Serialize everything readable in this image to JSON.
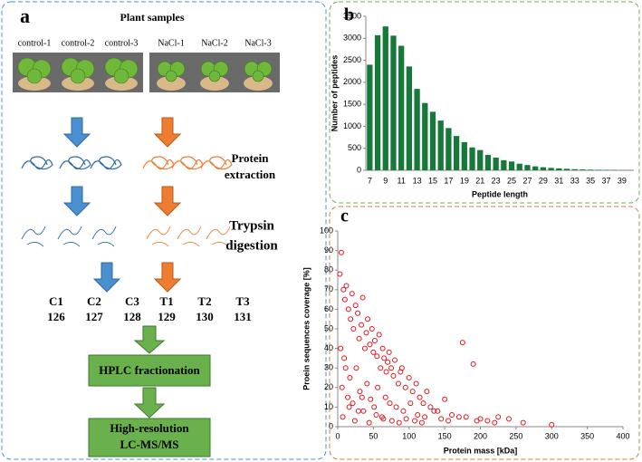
{
  "panel_a": {
    "label": "a",
    "title": "Plant samples",
    "samples": [
      "control-1",
      "control-2",
      "control-3",
      "NaCl-1",
      "NaCl-2",
      "NaCl-3"
    ],
    "extraction": [
      "Protein",
      "extraction"
    ],
    "digestion": [
      "Trypsin",
      "digestion"
    ],
    "tags": [
      {
        "name": "C1",
        "number": "126"
      },
      {
        "name": "C2",
        "number": "127"
      },
      {
        "name": "C3",
        "number": "128"
      },
      {
        "name": "T1",
        "number": "129"
      },
      {
        "name": "T2",
        "number": "130"
      },
      {
        "name": "T3",
        "number": "131"
      }
    ],
    "fractionation": "HPLC fractionation",
    "ms": [
      "High-resolution",
      "LC-MS/MS"
    ]
  },
  "chart_data": [
    {
      "type": "bar",
      "label": "b",
      "xlabel": "Peptide length",
      "ylabel": "Number of peptides",
      "color": "#16793a",
      "grid": false,
      "categories": [
        "7",
        null,
        "9",
        null,
        "11",
        null,
        "13",
        null,
        "15",
        null,
        "17",
        null,
        "19",
        null,
        "21",
        null,
        "23",
        null,
        "25",
        null,
        "27",
        null,
        "29",
        null,
        "31",
        null,
        "33",
        null,
        "35",
        null,
        "37",
        null,
        "39",
        null
      ],
      "values": [
        2400,
        3070,
        3270,
        3060,
        2830,
        2360,
        1850,
        1530,
        1330,
        1130,
        960,
        780,
        640,
        520,
        460,
        350,
        290,
        230,
        200,
        150,
        120,
        90,
        70,
        55,
        45,
        35,
        25,
        20,
        15,
        12,
        10,
        8,
        6,
        5
      ],
      "ylim": [
        0,
        3500
      ],
      "yticks": [
        0,
        500,
        1000,
        1500,
        2000,
        2500,
        3000,
        3500
      ]
    },
    {
      "type": "scatter",
      "label": "c",
      "xlabel": "Protein mass [kDa]",
      "ylabel": "Proein sequences coverage [%]",
      "color": "#e0141b",
      "grid": false,
      "x": [
        3,
        5,
        8,
        10,
        12,
        15,
        18,
        20,
        22,
        25,
        28,
        30,
        33,
        35,
        38,
        40,
        42,
        45,
        48,
        50,
        52,
        55,
        58,
        60,
        63,
        65,
        68,
        70,
        72,
        75,
        78,
        80,
        85,
        88,
        90,
        95,
        100,
        105,
        110,
        115,
        120,
        125,
        130,
        140,
        150,
        160,
        175,
        180,
        190,
        200,
        210,
        225,
        240,
        260,
        300,
        6,
        9,
        14,
        17,
        21,
        26,
        31,
        36,
        41,
        46,
        51,
        56,
        62,
        67,
        73,
        82,
        92,
        102,
        112,
        122,
        135,
        145,
        155,
        170,
        195,
        220,
        4,
        7,
        11,
        16,
        24,
        29,
        34,
        44,
        54,
        64,
        76,
        86,
        96,
        108,
        118
      ],
      "y": [
        78,
        89,
        70,
        65,
        72,
        60,
        55,
        68,
        50,
        62,
        58,
        45,
        52,
        66,
        40,
        48,
        55,
        42,
        50,
        38,
        44,
        36,
        47,
        30,
        40,
        35,
        28,
        33,
        38,
        30,
        26,
        34,
        22,
        28,
        30,
        20,
        25,
        18,
        22,
        15,
        12,
        18,
        10,
        8,
        14,
        6,
        43,
        5,
        32,
        4,
        3,
        5,
        4,
        2,
        1,
        20,
        35,
        15,
        25,
        12,
        30,
        18,
        8,
        22,
        14,
        10,
        20,
        5,
        15,
        12,
        10,
        8,
        12,
        6,
        5,
        8,
        4,
        3,
        5,
        3,
        2,
        40,
        5,
        30,
        10,
        3,
        8,
        15,
        2,
        6,
        4,
        3,
        2,
        4,
        3,
        2
      ],
      "xlim": [
        0,
        400
      ],
      "xticks": [
        0,
        50,
        100,
        150,
        200,
        250,
        300,
        350,
        400
      ],
      "ylim": [
        0,
        100
      ],
      "yticks": [
        0,
        10,
        20,
        30,
        40,
        50,
        60,
        70,
        80,
        90,
        100
      ]
    }
  ]
}
